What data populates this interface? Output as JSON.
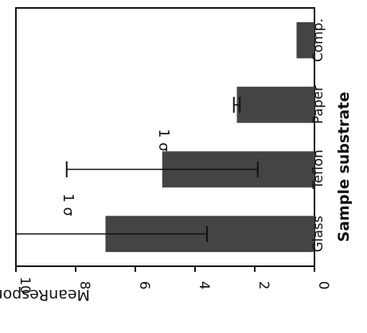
{
  "chart_data": {
    "type": "bar",
    "orientation": "horizontal",
    "image_rotation": "rotated 90° clockwise",
    "categories": [
      "Glass",
      "Teflon",
      "Paper",
      "Comp."
    ],
    "values": [
      7.0,
      5.1,
      2.6,
      0.6
    ],
    "error_bars": [
      3.4,
      3.2,
      0.1,
      0
    ],
    "xlabel": "Sample substrate",
    "ylabel": "MeanResponse (%)",
    "ylim": [
      0,
      10
    ],
    "yticks": [
      "0",
      "2",
      "4",
      "6",
      "8",
      "10"
    ],
    "annotations": [
      {
        "text": "1 σ",
        "category": "Glass",
        "at_value": 8.4
      },
      {
        "text": "1 σ",
        "category": "Teflon",
        "at_value": 5.2
      }
    ],
    "bar_color": "#444444",
    "grid": false,
    "legend": "none"
  }
}
